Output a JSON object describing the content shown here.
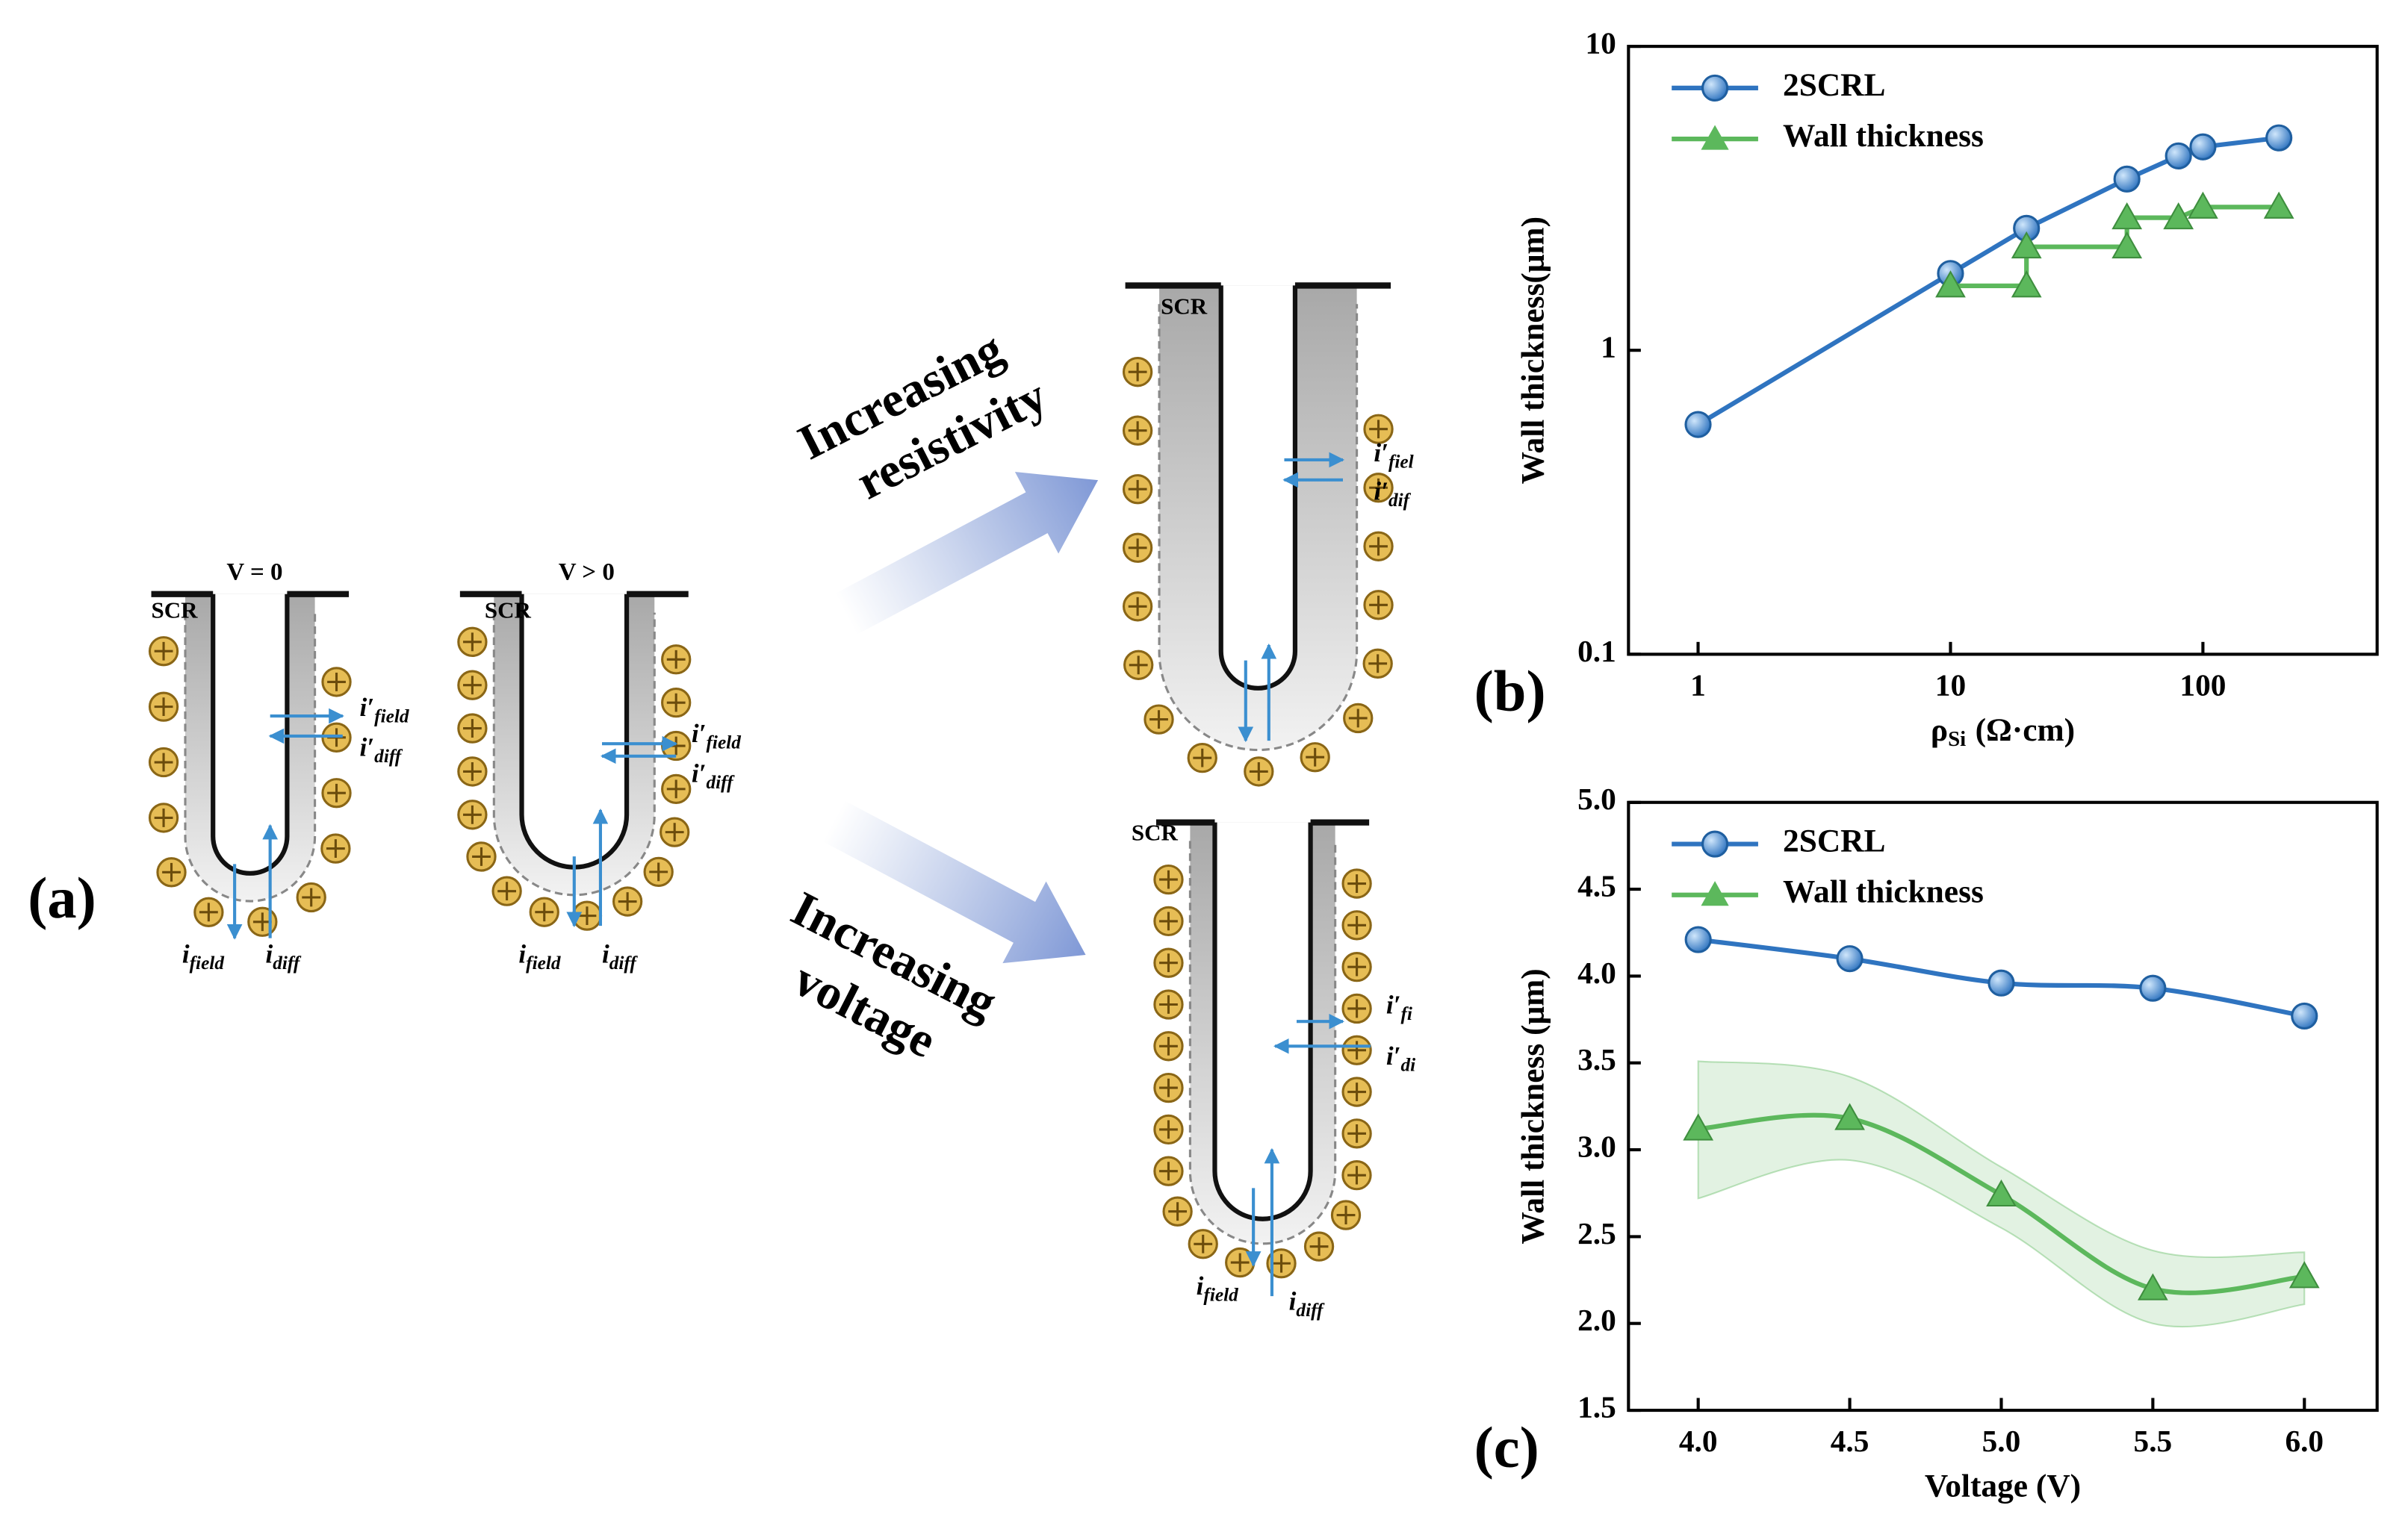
{
  "panel_a": {
    "label": "(a)",
    "diagrams": [
      {
        "condition": "V = 0",
        "scr": "SCR",
        "currents": [
          {
            "symbol": "i′",
            "sub": "field"
          },
          {
            "symbol": "i′",
            "sub": "diff"
          },
          {
            "symbol": "i",
            "sub": "field"
          },
          {
            "symbol": "i",
            "sub": "diff"
          }
        ]
      },
      {
        "condition": "V > 0",
        "scr": "SCR",
        "currents": [
          {
            "symbol": "i′",
            "sub": "field"
          },
          {
            "symbol": "i′",
            "sub": "diff"
          },
          {
            "symbol": "i",
            "sub": "field"
          },
          {
            "symbol": "i",
            "sub": "diff"
          }
        ]
      },
      {
        "scr": "SCR",
        "currents": [
          {
            "symbol": "i′",
            "sub": "fiel"
          },
          {
            "symbol": "i′",
            "sub": "dif"
          }
        ]
      },
      {
        "scr": "SCR",
        "currents": [
          {
            "symbol": "i′",
            "sub": "fi"
          },
          {
            "symbol": "i′",
            "sub": "di"
          },
          {
            "symbol": "i",
            "sub": "field"
          },
          {
            "symbol": "i",
            "sub": "diff"
          }
        ]
      }
    ],
    "arrows": [
      {
        "text": [
          "Increasing",
          "resistivity"
        ]
      },
      {
        "text": [
          "Increasing",
          "voltage"
        ]
      }
    ]
  },
  "chart_data": [
    {
      "type": "line",
      "panel": "(b)",
      "ylabel": "Wall thickness(μm)",
      "xlabel": {
        "symbol": "ρ",
        "sub": "Si",
        "unit": "(Ω·cm)"
      },
      "xscale": "log",
      "yscale": "log",
      "xlim": [
        0.53,
        490
      ],
      "ylim": [
        0.1,
        10
      ],
      "xticks": [
        1,
        10,
        100
      ],
      "yticks": [
        0.1,
        1,
        10
      ],
      "legend": "upper left",
      "series": [
        {
          "name": "2SCRL",
          "color": "#2f74c0",
          "marker": "circle",
          "x": [
            1,
            10,
            20,
            50,
            80,
            100,
            200
          ],
          "values": [
            0.57,
            1.79,
            2.52,
            3.66,
            4.36,
            4.67,
            5.0
          ]
        },
        {
          "name": "Wall thickness",
          "color": "#5cb85c",
          "marker": "triangle",
          "x": [
            10,
            20,
            20,
            50,
            50,
            80,
            100,
            200
          ],
          "values": [
            1.63,
            1.63,
            2.19,
            2.19,
            2.73,
            2.73,
            2.96,
            2.96
          ]
        }
      ]
    },
    {
      "type": "line",
      "panel": "(c)",
      "ylabel": "Wall thickness (μm)",
      "xlabel": "Voltage (V)",
      "xlim": [
        3.77,
        6.24
      ],
      "ylim": [
        1.5,
        5.0
      ],
      "xticks": [
        {
          "value": 4,
          "label": "4.0"
        },
        4.5,
        {
          "value": 5,
          "label": "5.0"
        },
        5.5,
        {
          "value": 6,
          "label": "6.0"
        }
      ],
      "yticks": [
        1.5,
        {
          "value": 2,
          "label": "2.0"
        },
        2.5,
        {
          "value": 3,
          "label": "3.0"
        },
        3.5,
        {
          "value": 4,
          "label": "4.0"
        },
        4.5,
        {
          "value": 5,
          "label": "5.0"
        }
      ],
      "legend": "upper left",
      "smooth": true,
      "x": [
        4.0,
        4.5,
        5.0,
        5.5,
        6.0
      ],
      "series": [
        {
          "name": "2SCRL",
          "color": "#2f74c0",
          "marker": "circle",
          "values": [
            4.21,
            4.1,
            3.96,
            3.93,
            3.77
          ]
        },
        {
          "name": "Wall thickness",
          "color": "#5cb85c",
          "marker": "triangle",
          "values": [
            3.12,
            3.18,
            2.74,
            2.2,
            2.27
          ],
          "lower": [
            2.72,
            2.94,
            2.55,
            2.0,
            2.11
          ],
          "upper": [
            3.51,
            3.42,
            2.9,
            2.42,
            2.41
          ]
        }
      ]
    }
  ]
}
